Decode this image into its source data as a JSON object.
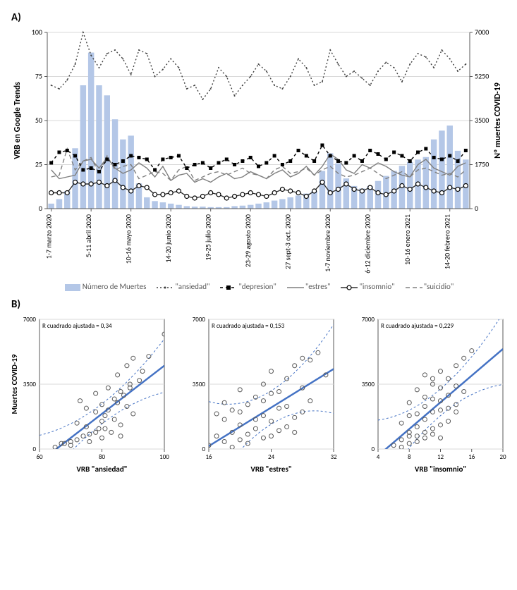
{
  "panelA": {
    "label": "A)",
    "y_left": {
      "label": "VRB en Google Trends",
      "min": 0,
      "max": 100,
      "ticks": [
        0,
        25,
        50,
        75,
        100
      ]
    },
    "y_right": {
      "label": "Nº muertes COVID-19",
      "min": 0,
      "max": 7000,
      "ticks": [
        0,
        1750,
        3500,
        5250,
        7000
      ]
    },
    "x_ticks": [
      "1-7 marzo 2020",
      "5-11 abril 2020",
      "10-16 mayo 2020",
      "14-20 junio 2020",
      "19-25 julio 2020",
      "23-29 agosto 2020",
      "27 sept-3 oct. 2020",
      "1-7 noviembre 2020",
      "6-12 diciembre 2020",
      "10-16 enero 2021",
      "14-20 febrero 2021"
    ],
    "bar_color": "#b4c7e7",
    "bars": [
      200,
      380,
      700,
      2400,
      4900,
      6200,
      4900,
      4500,
      3550,
      2750,
      2900,
      1000,
      450,
      300,
      250,
      200,
      150,
      100,
      80,
      80,
      60,
      60,
      60,
      100,
      120,
      150,
      200,
      250,
      320,
      380,
      450,
      520,
      600,
      700,
      1500,
      2200,
      1800,
      1200,
      900,
      800,
      900,
      1100,
      1300,
      1500,
      1700,
      1850,
      1950,
      2050,
      2750,
      3100,
      3300,
      2300,
      1950
    ],
    "series": {
      "ansiedad": {
        "color": "#404040",
        "dash": "2,3",
        "marker": "dot",
        "label": "\"ansiedad\"",
        "values": [
          70,
          68,
          73,
          82,
          100,
          87,
          80,
          88,
          90,
          85,
          76,
          90,
          88,
          75,
          79,
          85,
          80,
          68,
          70,
          62,
          68,
          80,
          75,
          64,
          70,
          75,
          82,
          78,
          70,
          68,
          75,
          85,
          80,
          70,
          72,
          90,
          82,
          75,
          78,
          74,
          70,
          78,
          83,
          80,
          72,
          82,
          88,
          86,
          80,
          90,
          85,
          78,
          82
        ]
      },
      "depresion": {
        "color": "#000000",
        "dash": "4,4",
        "marker": "square",
        "label": "\"depresion\"",
        "values": [
          26,
          32,
          33,
          30,
          22,
          23,
          21,
          28,
          25,
          27,
          30,
          29,
          28,
          22,
          28,
          29,
          30,
          23,
          25,
          26,
          23,
          26,
          28,
          25,
          27,
          29,
          24,
          26,
          30,
          25,
          27,
          33,
          30,
          27,
          36,
          30,
          27,
          26,
          30,
          27,
          33,
          31,
          28,
          32,
          30,
          27,
          32,
          34,
          29,
          28,
          30,
          27,
          33
        ]
      },
      "estres": {
        "color": "#7f7f7f",
        "dash": "none",
        "marker": "none",
        "label": "\"estres\"",
        "values": [
          22,
          17,
          18,
          19,
          27,
          28,
          23,
          29,
          23,
          20,
          22,
          26,
          23,
          18,
          24,
          16,
          19,
          20,
          15,
          17,
          15,
          18,
          20,
          17,
          18,
          21,
          19,
          17,
          20,
          22,
          18,
          20,
          24,
          19,
          24,
          31,
          28,
          22,
          20,
          25,
          23,
          26,
          24,
          21,
          19,
          18,
          25,
          28,
          23,
          21,
          19,
          24,
          26
        ]
      },
      "insomnio": {
        "color": "#303030",
        "dash": "none",
        "marker": "circle",
        "label": "\"insomnio\"",
        "values": [
          9,
          9,
          9,
          15,
          14,
          14,
          15,
          13,
          16,
          12,
          10,
          13,
          12,
          8,
          8,
          9,
          10,
          7,
          6,
          7,
          9,
          8,
          6,
          7,
          8,
          9,
          8,
          7,
          9,
          11,
          10,
          9,
          7,
          10,
          15,
          9,
          11,
          14,
          11,
          10,
          12,
          9,
          8,
          10,
          13,
          11,
          14,
          12,
          10,
          9,
          12,
          11,
          13
        ]
      },
      "suicidio": {
        "color": "#808080",
        "dash": "6,4",
        "marker": "none",
        "label": "\"suicidio\"",
        "values": [
          18,
          19,
          34,
          22,
          27,
          29,
          20,
          30,
          22,
          24,
          25,
          17,
          19,
          21,
          20,
          16,
          22,
          24,
          16,
          18,
          20,
          21,
          19,
          21,
          23,
          20,
          19,
          17,
          22,
          24,
          20,
          21,
          23,
          19,
          22,
          24,
          20,
          18,
          19,
          21,
          23,
          20,
          17,
          19,
          21,
          18,
          22,
          23,
          21,
          19,
          20,
          18,
          22
        ]
      }
    },
    "legend": [
      {
        "kind": "bar",
        "label": "Número de Muertes"
      },
      {
        "kind": "ansiedad",
        "label": "\"ansiedad\""
      },
      {
        "kind": "depresion",
        "label": "\"depresion\""
      },
      {
        "kind": "estres",
        "label": "\"estres\""
      },
      {
        "kind": "insomnio",
        "label": "\"insomnio\""
      },
      {
        "kind": "suicidio",
        "label": "\"suicidio\""
      }
    ]
  },
  "panelB": {
    "label": "B)",
    "y": {
      "label": "Muertes COVID-19",
      "min": 0,
      "max": 7000,
      "ticks": [
        0,
        3500,
        7000
      ]
    },
    "line_color": "#4472c4",
    "ci_color": "#4472c4",
    "marker_stroke": "#595959",
    "plots": [
      {
        "title": "VRB \"ansiedad\"",
        "r2_text": "R cuadrado ajustada = 0,34",
        "x": {
          "min": 60,
          "max": 100,
          "ticks": [
            60,
            80,
            100
          ]
        },
        "points": [
          [
            68,
            300
          ],
          [
            70,
            400
          ],
          [
            72,
            1400
          ],
          [
            73,
            2600
          ],
          [
            74,
            700
          ],
          [
            75,
            1200
          ],
          [
            75,
            2200
          ],
          [
            76,
            800
          ],
          [
            78,
            900
          ],
          [
            78,
            2000
          ],
          [
            78,
            3000
          ],
          [
            79,
            1100
          ],
          [
            80,
            600
          ],
          [
            80,
            1500
          ],
          [
            80,
            2400
          ],
          [
            81,
            1800
          ],
          [
            82,
            2100
          ],
          [
            82,
            3300
          ],
          [
            83,
            900
          ],
          [
            84,
            1600
          ],
          [
            85,
            2500
          ],
          [
            85,
            4000
          ],
          [
            86,
            700
          ],
          [
            86,
            3100
          ],
          [
            87,
            2900
          ],
          [
            88,
            2300
          ],
          [
            88,
            4500
          ],
          [
            89,
            3500
          ],
          [
            90,
            4900
          ],
          [
            90,
            1900
          ],
          [
            92,
            3700
          ],
          [
            95,
            5000
          ],
          [
            100,
            6200
          ],
          [
            70,
            200
          ],
          [
            65,
            100
          ],
          [
            67,
            300
          ],
          [
            72,
            500
          ],
          [
            76,
            400
          ],
          [
            81,
            1100
          ],
          [
            84,
            2700
          ],
          [
            89,
            3300
          ],
          [
            93,
            4200
          ],
          [
            86,
            1300
          ]
        ],
        "slope": 130,
        "intercept": -8500,
        "ci": 900
      },
      {
        "title": "VRB \"estres\"",
        "r2_text": "R cuadrado ajustada = 0,153",
        "x": {
          "min": 16,
          "max": 32,
          "ticks": [
            16,
            24,
            32
          ]
        },
        "points": [
          [
            16,
            200
          ],
          [
            17,
            700
          ],
          [
            17,
            1900
          ],
          [
            18,
            400
          ],
          [
            18,
            1600
          ],
          [
            18,
            2500
          ],
          [
            19,
            900
          ],
          [
            19,
            2100
          ],
          [
            20,
            500
          ],
          [
            20,
            1300
          ],
          [
            20,
            3200
          ],
          [
            21,
            800
          ],
          [
            21,
            2400
          ],
          [
            22,
            1100
          ],
          [
            22,
            2800
          ],
          [
            23,
            600
          ],
          [
            23,
            1800
          ],
          [
            23,
            3500
          ],
          [
            24,
            1500
          ],
          [
            24,
            4200
          ],
          [
            25,
            2200
          ],
          [
            25,
            3100
          ],
          [
            26,
            1200
          ],
          [
            26,
            3800
          ],
          [
            27,
            900
          ],
          [
            27,
            4500
          ],
          [
            28,
            2000
          ],
          [
            28,
            4900
          ],
          [
            29,
            2600
          ],
          [
            31,
            4000
          ],
          [
            19,
            100
          ],
          [
            21,
            300
          ],
          [
            24,
            700
          ],
          [
            22,
            1600
          ],
          [
            25,
            1000
          ],
          [
            27,
            1700
          ],
          [
            23,
            2600
          ],
          [
            26,
            2300
          ],
          [
            28,
            3300
          ],
          [
            24,
            3000
          ],
          [
            20,
            2000
          ],
          [
            29,
            4800
          ],
          [
            30,
            5200
          ]
        ],
        "slope": 260,
        "intercept": -4000,
        "ci": 1500
      },
      {
        "title": "VRB \"insomnio\"",
        "r2_text": "R cuadrado ajustada = 0,229",
        "x": {
          "min": 4,
          "max": 20,
          "ticks": [
            4,
            8,
            12,
            16,
            20
          ]
        },
        "points": [
          [
            6,
            200
          ],
          [
            7,
            500
          ],
          [
            7,
            1400
          ],
          [
            8,
            300
          ],
          [
            8,
            1800
          ],
          [
            8,
            2500
          ],
          [
            9,
            700
          ],
          [
            9,
            1900
          ],
          [
            9,
            3200
          ],
          [
            10,
            900
          ],
          [
            10,
            2300
          ],
          [
            10,
            4000
          ],
          [
            11,
            1100
          ],
          [
            11,
            2700
          ],
          [
            11,
            3500
          ],
          [
            12,
            600
          ],
          [
            12,
            2100
          ],
          [
            12,
            4200
          ],
          [
            13,
            1500
          ],
          [
            13,
            3800
          ],
          [
            14,
            2400
          ],
          [
            14,
            4500
          ],
          [
            15,
            3100
          ],
          [
            15,
            4900
          ],
          [
            16,
            5300
          ],
          [
            7,
            100
          ],
          [
            8,
            900
          ],
          [
            9,
            1200
          ],
          [
            10,
            1600
          ],
          [
            11,
            2000
          ],
          [
            12,
            1300
          ],
          [
            13,
            2900
          ],
          [
            14,
            2000
          ],
          [
            9,
            400
          ],
          [
            10,
            600
          ],
          [
            11,
            800
          ],
          [
            12,
            3300
          ],
          [
            13,
            2200
          ],
          [
            14,
            3400
          ],
          [
            8,
            700
          ],
          [
            10,
            2800
          ],
          [
            11,
            3800
          ],
          [
            12,
            2600
          ]
        ],
        "slope": 360,
        "intercept": -1800,
        "ci": 1200
      }
    ]
  },
  "colors": {
    "axis": "#595959",
    "grid": "#d9d9d9",
    "text": "#000000",
    "bg": "#ffffff"
  }
}
